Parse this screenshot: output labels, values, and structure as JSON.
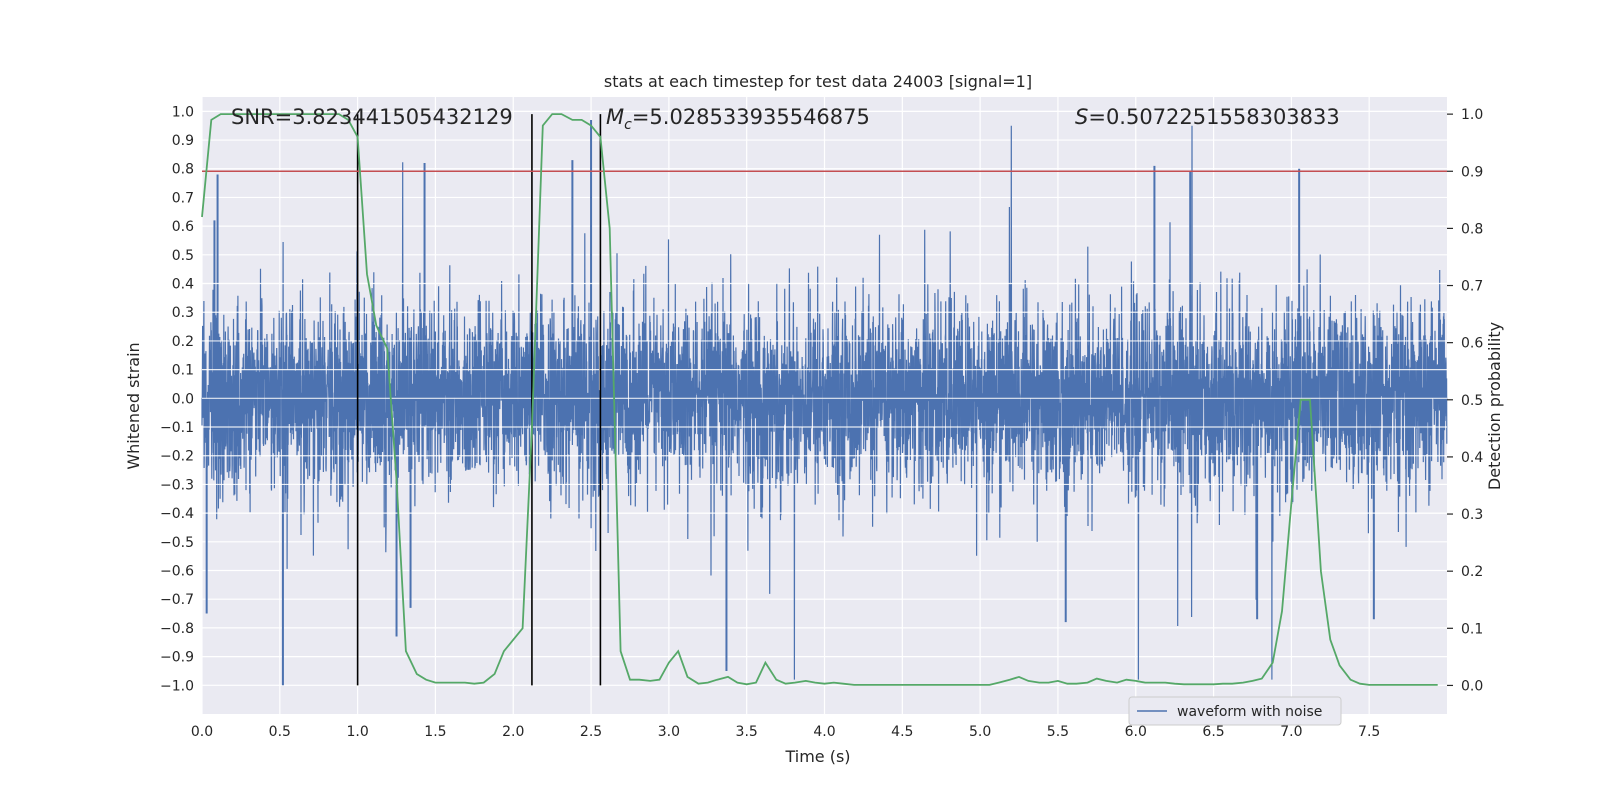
{
  "chart_data": {
    "type": "line",
    "title": "stats at each timestep for test data 24003 [signal=1]",
    "xlabel": "Time (s)",
    "ylabel_left": "Whitened strain",
    "ylabel_right": "Detection probability",
    "xlim": [
      0,
      8.0
    ],
    "ylim_left": [
      -1.1,
      1.05
    ],
    "ylim_right": [
      -0.05,
      1.03
    ],
    "x_ticks": [
      0,
      0.5,
      1,
      1.5,
      2,
      2.5,
      3,
      3.5,
      4,
      4.5,
      5,
      5.5,
      6,
      6.5,
      7,
      7.5
    ],
    "x_tick_labels": [
      "0.0",
      "0.5",
      "1.0",
      "1.5",
      "2.0",
      "2.5",
      "3.0",
      "3.5",
      "4.0",
      "4.5",
      "5.0",
      "5.5",
      "6.0",
      "6.5",
      "7.0",
      "7.5"
    ],
    "left_ticks": [
      1.0,
      0.9,
      0.8,
      0.7,
      0.6,
      0.5,
      0.4,
      0.3,
      0.2,
      0.1,
      0.0,
      -0.1,
      -0.2,
      -0.3,
      -0.4,
      -0.5,
      -0.6,
      -0.7,
      -0.8,
      -0.9,
      -1.0
    ],
    "left_tick_labels": [
      "1.0",
      "0.9",
      "0.8",
      "0.7",
      "0.6",
      "0.5",
      "0.4",
      "0.3",
      "0.2",
      "0.1",
      "0.0",
      "−0.1",
      "−0.2",
      "−0.3",
      "−0.4",
      "−0.5",
      "−0.6",
      "−0.7",
      "−0.8",
      "−0.9",
      "−1.0"
    ],
    "right_ticks": [
      1.0,
      0.9,
      0.8,
      0.7,
      0.6,
      0.5,
      0.4,
      0.3,
      0.2,
      0.1,
      0.0
    ],
    "right_tick_labels": [
      "1.0",
      "0.9",
      "0.8",
      "0.7",
      "0.6",
      "0.5",
      "0.4",
      "0.3",
      "0.2",
      "0.1",
      "0.0"
    ],
    "threshold": {
      "value": 0.9,
      "axis": "right",
      "color": "#c44e52"
    },
    "vertical_markers": [
      1.0,
      2.12,
      2.56
    ],
    "annotations": {
      "snr": "SNR=3.823441505432129",
      "mc_symbol": "M",
      "mc_sub": "c",
      "mc_value": "=5.028533935546875",
      "s_symbol": "S",
      "s_value": "=0.5072251558303833"
    },
    "legend": {
      "label": "waveform with noise",
      "position": "lower-right"
    },
    "series": [
      {
        "name": "waveform with noise",
        "axis": "left",
        "color": "#4c72b0",
        "note": "whitened noisy strain, 16384 samples at 2048 Hz; band roughly ±0.3 with spikes to about ±1.0",
        "peaks": [
          {
            "t": 0.08,
            "v": 0.62
          },
          {
            "t": 0.1,
            "v": 0.78
          },
          {
            "t": 0.52,
            "v": -1.0
          },
          {
            "t": 0.03,
            "v": -0.75
          },
          {
            "t": 1.43,
            "v": 0.82
          },
          {
            "t": 1.25,
            "v": -0.83
          },
          {
            "t": 1.34,
            "v": -0.73
          },
          {
            "t": 2.5,
            "v": 0.97
          },
          {
            "t": 2.38,
            "v": 0.83
          },
          {
            "t": 3.37,
            "v": -0.95
          },
          {
            "t": 6.12,
            "v": 0.81
          },
          {
            "t": 7.05,
            "v": 0.8
          },
          {
            "t": 6.35,
            "v": 0.79
          },
          {
            "t": 5.55,
            "v": -0.78
          },
          {
            "t": 6.78,
            "v": -0.77
          },
          {
            "t": 7.53,
            "v": -0.77
          }
        ]
      },
      {
        "name": "detection probability",
        "axis": "right",
        "color": "#55a868",
        "x": [
          0.0,
          0.06,
          0.12,
          0.19,
          0.25,
          0.31,
          0.38,
          0.44,
          0.5,
          0.56,
          0.62,
          0.69,
          0.75,
          0.81,
          0.88,
          0.94,
          1.0,
          1.06,
          1.12,
          1.19,
          1.25,
          1.31,
          1.38,
          1.44,
          1.5,
          1.56,
          1.62,
          1.69,
          1.75,
          1.81,
          1.88,
          1.94,
          2.0,
          2.06,
          2.12,
          2.19,
          2.25,
          2.31,
          2.38,
          2.44,
          2.5,
          2.56,
          2.62,
          2.69,
          2.75,
          2.81,
          2.88,
          2.94,
          3.0,
          3.06,
          3.12,
          3.19,
          3.25,
          3.31,
          3.38,
          3.44,
          3.5,
          3.56,
          3.62,
          3.69,
          3.75,
          3.81,
          3.88,
          3.94,
          4.0,
          4.06,
          4.12,
          4.19,
          4.25,
          4.31,
          4.38,
          4.44,
          4.5,
          4.56,
          4.62,
          4.69,
          4.75,
          4.81,
          4.88,
          4.94,
          5.0,
          5.06,
          5.12,
          5.19,
          5.25,
          5.31,
          5.38,
          5.44,
          5.5,
          5.56,
          5.62,
          5.69,
          5.75,
          5.81,
          5.88,
          5.94,
          6.0,
          6.06,
          6.12,
          6.19,
          6.25,
          6.31,
          6.38,
          6.44,
          6.5,
          6.56,
          6.62,
          6.69,
          6.75,
          6.81,
          6.88,
          6.94,
          7.0,
          7.06,
          7.12,
          7.19,
          7.25,
          7.31,
          7.38,
          7.44,
          7.5,
          7.56,
          7.62,
          7.69,
          7.75,
          7.81,
          7.88,
          7.94
        ],
        "values": [
          0.82,
          0.99,
          1.0,
          1.0,
          1.0,
          1.0,
          1.0,
          1.0,
          1.0,
          1.0,
          1.0,
          1.0,
          1.0,
          1.0,
          1.0,
          0.99,
          0.96,
          0.72,
          0.63,
          0.59,
          0.36,
          0.06,
          0.02,
          0.01,
          0.005,
          0.005,
          0.005,
          0.005,
          0.003,
          0.005,
          0.02,
          0.06,
          0.08,
          0.1,
          0.45,
          0.98,
          1.0,
          1.0,
          0.99,
          0.99,
          0.98,
          0.96,
          0.8,
          0.06,
          0.01,
          0.01,
          0.008,
          0.01,
          0.04,
          0.06,
          0.015,
          0.003,
          0.005,
          0.01,
          0.015,
          0.005,
          0.002,
          0.005,
          0.04,
          0.01,
          0.003,
          0.005,
          0.008,
          0.005,
          0.003,
          0.005,
          0.003,
          0.001,
          0.001,
          0.001,
          0.001,
          0.001,
          0.001,
          0.001,
          0.001,
          0.001,
          0.001,
          0.001,
          0.001,
          0.001,
          0.001,
          0.001,
          0.005,
          0.01,
          0.015,
          0.008,
          0.005,
          0.005,
          0.008,
          0.003,
          0.003,
          0.005,
          0.012,
          0.008,
          0.005,
          0.01,
          0.008,
          0.005,
          0.005,
          0.005,
          0.003,
          0.002,
          0.002,
          0.002,
          0.002,
          0.003,
          0.003,
          0.005,
          0.008,
          0.012,
          0.04,
          0.13,
          0.32,
          0.5,
          0.5,
          0.2,
          0.08,
          0.035,
          0.01,
          0.003,
          0.001,
          0.001,
          0.001,
          0.001,
          0.001,
          0.001,
          0.001,
          0.001
        ]
      }
    ]
  }
}
